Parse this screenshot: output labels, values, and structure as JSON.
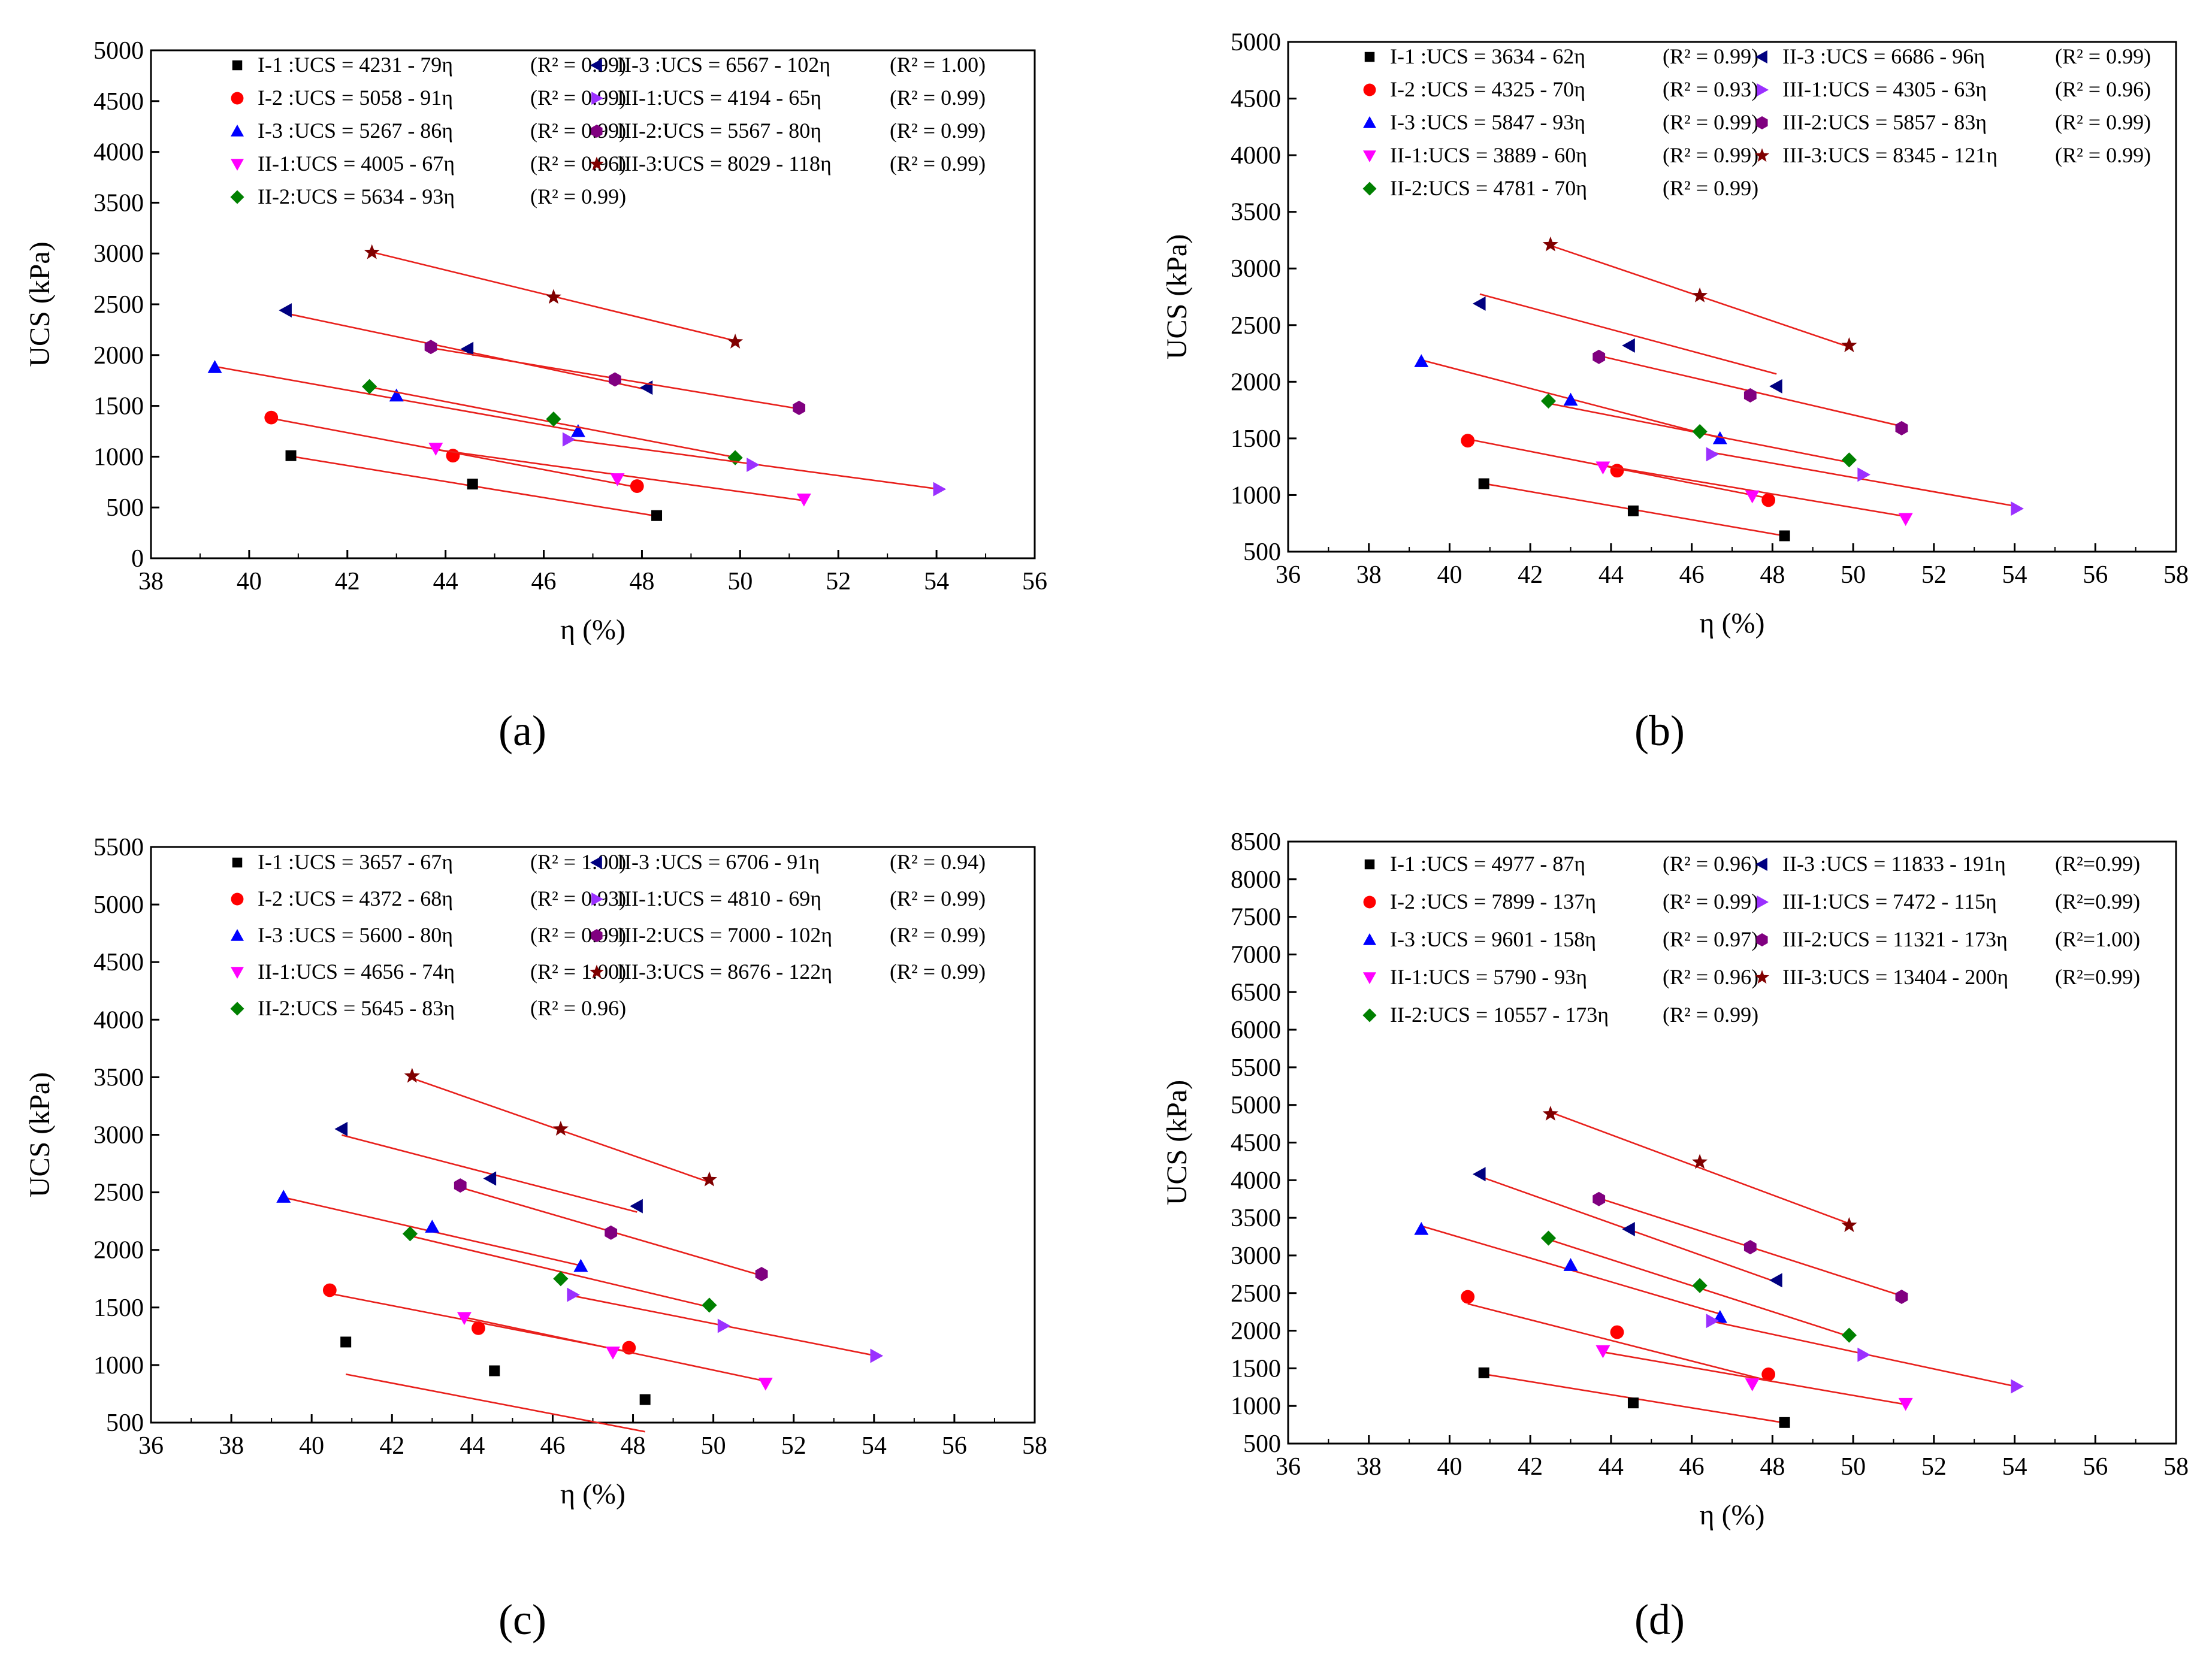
{
  "chart_data": [
    {
      "panel_label": "(a)",
      "type": "scatter",
      "xlabel": "η (%)",
      "ylabel": "UCS (kPa)",
      "xlim": [
        38,
        56
      ],
      "ylim": [
        0,
        5000
      ],
      "xticks": [
        38,
        40,
        42,
        44,
        46,
        48,
        50,
        52,
        54,
        56
      ],
      "yticks": [
        0,
        500,
        1000,
        1500,
        2000,
        2500,
        3000,
        3500,
        4000,
        4500,
        5000
      ],
      "legend": {
        "col1": [
          {
            "series": "I-1",
            "eq": "I-1 :UCS = 4231 - 79η",
            "r2": "(R² = 0.99)"
          },
          {
            "series": "I-2",
            "eq": "I-2 :UCS = 5058 - 91η",
            "r2": "(R² = 0.99)"
          },
          {
            "series": "I-3",
            "eq": "I-3 :UCS = 5267 - 86η",
            "r2": "(R² = 0.99)"
          },
          {
            "series": "II-1",
            "eq": "II-1:UCS = 4005 - 67η",
            "r2": "(R² = 0.96)"
          },
          {
            "series": "II-2",
            "eq": "II-2:UCS = 5634 - 93η",
            "r2": "(R² = 0.99)"
          }
        ],
        "col2": [
          {
            "series": "II-3",
            "eq": "II-3 :UCS = 6567 - 102η",
            "r2": "(R² = 1.00)"
          },
          {
            "series": "III-1",
            "eq": "III-1:UCS = 4194 - 65η",
            "r2": "(R² =  0.99)"
          },
          {
            "series": "III-2",
            "eq": "III-2:UCS = 5567 - 80η",
            "r2": "(R² = 0.99)"
          },
          {
            "series": "III-3",
            "eq": "III-3:UCS = 8029 - 118η",
            "r2": "(R² = 0.99)"
          }
        ]
      },
      "series": [
        {
          "name": "I-1",
          "x": [
            40.85,
            44.55,
            48.3
          ],
          "y": [
            1010,
            730,
            420
          ],
          "fit": [
            4231,
            -79
          ]
        },
        {
          "name": "I-2",
          "x": [
            40.45,
            44.15,
            47.9
          ],
          "y": [
            1385,
            1010,
            710
          ],
          "fit": [
            5058,
            -91
          ]
        },
        {
          "name": "I-3",
          "x": [
            39.3,
            43.0,
            46.7
          ],
          "y": [
            1880,
            1600,
            1250
          ],
          "fit": [
            5267,
            -86
          ]
        },
        {
          "name": "II-1",
          "x": [
            43.8,
            47.5,
            51.3
          ],
          "y": [
            1080,
            780,
            580
          ],
          "fit": [
            4005,
            -67
          ]
        },
        {
          "name": "II-2",
          "x": [
            42.45,
            46.2,
            49.9
          ],
          "y": [
            1690,
            1370,
            990
          ],
          "fit": [
            5634,
            -93
          ]
        },
        {
          "name": "II-3",
          "x": [
            40.75,
            44.45,
            48.1
          ],
          "y": [
            2440,
            2060,
            1680
          ],
          "fit": [
            6567,
            -102
          ]
        },
        {
          "name": "III-1",
          "x": [
            46.5,
            50.25,
            54.05
          ],
          "y": [
            1170,
            920,
            680
          ],
          "fit": [
            4194,
            -65
          ]
        },
        {
          "name": "III-2",
          "x": [
            43.7,
            47.45,
            51.2
          ],
          "y": [
            2080,
            1760,
            1480
          ],
          "fit": [
            5567,
            -80
          ]
        },
        {
          "name": "III-3",
          "x": [
            42.5,
            46.2,
            49.9
          ],
          "y": [
            3010,
            2570,
            2130
          ],
          "fit": [
            8029,
            -118
          ]
        }
      ]
    },
    {
      "panel_label": "(b)",
      "type": "scatter",
      "xlabel": "η (%)",
      "ylabel": "UCS (kPa)",
      "xlim": [
        36,
        58
      ],
      "ylim": [
        500,
        5000
      ],
      "xticks": [
        36,
        38,
        40,
        42,
        44,
        46,
        48,
        50,
        52,
        54,
        56,
        58
      ],
      "yticks": [
        500,
        1000,
        1500,
        2000,
        2500,
        3000,
        3500,
        4000,
        4500,
        5000
      ],
      "legend": {
        "col1": [
          {
            "series": "I-1",
            "eq": "I-1 :UCS = 3634 - 62η",
            "r2": "(R² = 0.99)"
          },
          {
            "series": "I-2",
            "eq": "I-2 :UCS = 4325 - 70η",
            "r2": "(R² = 0.93)"
          },
          {
            "series": "I-3",
            "eq": "I-3 :UCS = 5847 - 93η",
            "r2": "(R² = 0.99)"
          },
          {
            "series": "II-1",
            "eq": "II-1:UCS = 3889 - 60η",
            "r2": "(R² = 0.99)"
          },
          {
            "series": "II-2",
            "eq": "II-2:UCS = 4781 - 70η",
            "r2": "(R² = 0.99)"
          }
        ],
        "col2": [
          {
            "series": "II-3",
            "eq": "II-3 :UCS = 6686 - 96η",
            "r2": "(R² = 0.99)"
          },
          {
            "series": "III-1",
            "eq": "III-1:UCS = 4305 - 63η",
            "r2": "(R² = 0.96)"
          },
          {
            "series": "III-2",
            "eq": "III-2:UCS = 5857 - 83η",
            "r2": "(R² = 0.99)"
          },
          {
            "series": "III-3",
            "eq": "III-3:UCS = 8345 - 121η",
            "r2": "(R² = 0.99)"
          }
        ]
      },
      "series": [
        {
          "name": "I-1",
          "x": [
            40.85,
            44.55,
            48.3
          ],
          "y": [
            1100,
            860,
            640
          ],
          "fit": [
            3634,
            -62
          ]
        },
        {
          "name": "I-2",
          "x": [
            40.45,
            44.15,
            47.9
          ],
          "y": [
            1480,
            1215,
            955
          ],
          "fit": [
            4325,
            -70
          ]
        },
        {
          "name": "I-3",
          "x": [
            39.3,
            43.0,
            46.7
          ],
          "y": [
            2180,
            1840,
            1500
          ],
          "fit": [
            5847,
            -93
          ]
        },
        {
          "name": "II-1",
          "x": [
            43.8,
            47.5,
            51.3
          ],
          "y": [
            1245,
            990,
            790
          ],
          "fit": [
            3889,
            -60
          ]
        },
        {
          "name": "II-2",
          "x": [
            42.45,
            46.2,
            49.9
          ],
          "y": [
            1830,
            1560,
            1310
          ],
          "fit": [
            4781,
            -70
          ]
        },
        {
          "name": "II-3",
          "x": [
            40.75,
            44.45,
            48.1
          ],
          "y": [
            2690,
            2320,
            1960
          ],
          "fit": [
            6686,
            -96
          ]
        },
        {
          "name": "III-1",
          "x": [
            46.5,
            50.25,
            54.05
          ],
          "y": [
            1360,
            1180,
            880
          ],
          "fit": [
            4305,
            -63
          ]
        },
        {
          "name": "III-2",
          "x": [
            43.7,
            47.45,
            51.2
          ],
          "y": [
            2220,
            1880,
            1590
          ],
          "fit": [
            5857,
            -83
          ]
        },
        {
          "name": "III-3",
          "x": [
            42.5,
            46.2,
            49.9
          ],
          "y": [
            3210,
            2760,
            2320
          ],
          "fit": [
            8345,
            -121
          ]
        }
      ]
    },
    {
      "panel_label": "(c)",
      "type": "scatter",
      "xlabel": "η (%)",
      "ylabel": "UCS (kPa)",
      "xlim": [
        36,
        58
      ],
      "ylim": [
        500,
        5500
      ],
      "xticks": [
        36,
        38,
        40,
        42,
        44,
        46,
        48,
        50,
        52,
        54,
        56,
        58
      ],
      "yticks": [
        500,
        1000,
        1500,
        2000,
        2500,
        3000,
        3500,
        4000,
        4500,
        5000,
        5500
      ],
      "legend": {
        "col1": [
          {
            "series": "I-1",
            "eq": "I-1 :UCS = 3657 - 67η",
            "r2": "(R² = 1.00)"
          },
          {
            "series": "I-2",
            "eq": "I-2 :UCS = 4372 - 68η",
            "r2": "(R² = 0.93)"
          },
          {
            "series": "I-3",
            "eq": "I-3 :UCS = 5600 - 80η",
            "r2": "(R² = 0.99)"
          },
          {
            "series": "II-1",
            "eq": "II-1:UCS = 4656 - 74η",
            "r2": "(R² = 1.00)"
          },
          {
            "series": "II-2",
            "eq": "II-2:UCS = 5645 - 83η",
            "r2": "(R² = 0.96)"
          }
        ],
        "col2": [
          {
            "series": "II-3",
            "eq": "II-3 :UCS = 6706 - 91η",
            "r2": "(R² = 0.94)"
          },
          {
            "series": "III-1",
            "eq": "III-1:UCS = 4810 - 69η",
            "r2": "(R² = 0.99)"
          },
          {
            "series": "III-2",
            "eq": "III-2:UCS = 7000 - 102η",
            "r2": "(R² = 0.99)"
          },
          {
            "series": "III-3",
            "eq": "III-3:UCS = 8676 - 122η",
            "r2": "(R² = 0.99)"
          }
        ]
      },
      "series": [
        {
          "name": "I-1",
          "x": [
            40.85,
            44.55,
            48.3
          ],
          "y": [
            1200,
            950,
            700
          ],
          "fit": [
            3657,
            -67
          ]
        },
        {
          "name": "I-2",
          "x": [
            40.45,
            44.15,
            47.9
          ],
          "y": [
            1650,
            1320,
            1150
          ],
          "fit": [
            4372,
            -68
          ]
        },
        {
          "name": "I-3",
          "x": [
            39.3,
            43.0,
            46.7
          ],
          "y": [
            2460,
            2200,
            1860
          ],
          "fit": [
            5600,
            -80
          ]
        },
        {
          "name": "II-1",
          "x": [
            43.8,
            47.5,
            51.3
          ],
          "y": [
            1410,
            1110,
            840
          ],
          "fit": [
            4656,
            -74
          ]
        },
        {
          "name": "II-2",
          "x": [
            42.45,
            46.2,
            49.9
          ],
          "y": [
            2140,
            1750,
            1520
          ],
          "fit": [
            5645,
            -83
          ]
        },
        {
          "name": "II-3",
          "x": [
            40.75,
            44.45,
            48.1
          ],
          "y": [
            3050,
            2620,
            2380
          ],
          "fit": [
            6706,
            -91
          ]
        },
        {
          "name": "III-1",
          "x": [
            46.5,
            50.25,
            54.05
          ],
          "y": [
            1610,
            1340,
            1080
          ],
          "fit": [
            4810,
            -69
          ]
        },
        {
          "name": "III-2",
          "x": [
            43.7,
            47.45,
            51.2
          ],
          "y": [
            2560,
            2150,
            1790
          ],
          "fit": [
            7000,
            -102
          ]
        },
        {
          "name": "III-3",
          "x": [
            42.5,
            46.2,
            49.9
          ],
          "y": [
            3510,
            3050,
            2610
          ],
          "fit": [
            8676,
            -122
          ]
        }
      ]
    },
    {
      "panel_label": "(d)",
      "type": "scatter",
      "xlabel": "η (%)",
      "ylabel": "UCS (kPa)",
      "xlim": [
        36,
        58
      ],
      "ylim": [
        500,
        8500
      ],
      "xticks": [
        36,
        38,
        40,
        42,
        44,
        46,
        48,
        50,
        52,
        54,
        56,
        58
      ],
      "yticks": [
        500,
        1000,
        1500,
        2000,
        2500,
        3000,
        3500,
        4000,
        4500,
        5000,
        5500,
        6000,
        6500,
        7000,
        7500,
        8000,
        8500
      ],
      "legend": {
        "col1": [
          {
            "series": "I-1",
            "eq": "I-1 :UCS = 4977 - 87η",
            "r2": "(R² = 0.96)"
          },
          {
            "series": "I-2",
            "eq": "I-2 :UCS = 7899 - 137η",
            "r2": "(R² = 0.99)"
          },
          {
            "series": "I-3",
            "eq": "I-3 :UCS = 9601 - 158η",
            "r2": "(R² = 0.97)"
          },
          {
            "series": "II-1",
            "eq": "II-1:UCS = 5790 - 93η",
            "r2": "(R² = 0.96)"
          },
          {
            "series": "II-2",
            "eq": "II-2:UCS = 10557 - 173η",
            "r2": "(R² = 0.99)"
          }
        ],
        "col2": [
          {
            "series": "II-3",
            "eq": "II-3 :UCS = 11833 - 191η",
            "r2": "(R²=0.99)"
          },
          {
            "series": "III-1",
            "eq": "III-1:UCS = 7472 - 115η",
            "r2": "(R²=0.99)"
          },
          {
            "series": "III-2",
            "eq": "III-2:UCS = 11321 - 173η",
            "r2": "(R²=1.00)"
          },
          {
            "series": "III-3",
            "eq": "III-3:UCS = 13404 - 200η",
            "r2": "(R²=0.99)"
          }
        ]
      },
      "series": [
        {
          "name": "I-1",
          "x": [
            40.85,
            44.55,
            48.3
          ],
          "y": [
            1440,
            1040,
            780
          ],
          "fit": [
            4977,
            -87
          ]
        },
        {
          "name": "I-2",
          "x": [
            40.45,
            44.15,
            47.9
          ],
          "y": [
            2450,
            1980,
            1420
          ],
          "fit": [
            7899,
            -137
          ]
        },
        {
          "name": "I-3",
          "x": [
            39.3,
            43.0,
            46.7
          ],
          "y": [
            3350,
            2870,
            2180
          ],
          "fit": [
            9601,
            -158
          ]
        },
        {
          "name": "II-1",
          "x": [
            43.8,
            47.5,
            51.3
          ],
          "y": [
            1730,
            1290,
            1030
          ],
          "fit": [
            5790,
            -93
          ]
        },
        {
          "name": "II-2",
          "x": [
            42.45,
            46.2,
            49.9
          ],
          "y": [
            3230,
            2600,
            1940
          ],
          "fit": [
            10557,
            -173
          ]
        },
        {
          "name": "II-3",
          "x": [
            40.75,
            44.45,
            48.1
          ],
          "y": [
            4080,
            3350,
            2670
          ],
          "fit": [
            11833,
            -191
          ]
        },
        {
          "name": "III-1",
          "x": [
            46.5,
            50.25,
            54.05
          ],
          "y": [
            2130,
            1680,
            1260
          ],
          "fit": [
            7472,
            -115
          ]
        },
        {
          "name": "III-2",
          "x": [
            43.7,
            47.45,
            51.2
          ],
          "y": [
            3750,
            3110,
            2450
          ],
          "fit": [
            11321,
            -173
          ]
        },
        {
          "name": "III-3",
          "x": [
            42.5,
            46.2,
            49.9
          ],
          "y": [
            4880,
            4240,
            3400
          ],
          "fit": [
            13404,
            -200
          ]
        }
      ]
    }
  ],
  "series_style": {
    "I-1": {
      "color": "#000000",
      "marker": "square-icon"
    },
    "I-2": {
      "color": "#ff0000",
      "marker": "circle-icon"
    },
    "I-3": {
      "color": "#0000ff",
      "marker": "triangle-up-icon"
    },
    "II-1": {
      "color": "#ff00ff",
      "marker": "triangle-down-icon"
    },
    "II-2": {
      "color": "#008000",
      "marker": "diamond-icon"
    },
    "II-3": {
      "color": "#000080",
      "marker": "triangle-left-icon"
    },
    "III-1": {
      "color": "#9b30ff",
      "marker": "triangle-right-icon"
    },
    "III-2": {
      "color": "#800080",
      "marker": "hexagon-icon"
    },
    "III-3": {
      "color": "#800000",
      "marker": "star-icon"
    }
  },
  "fit_line_color": "#e8201c"
}
